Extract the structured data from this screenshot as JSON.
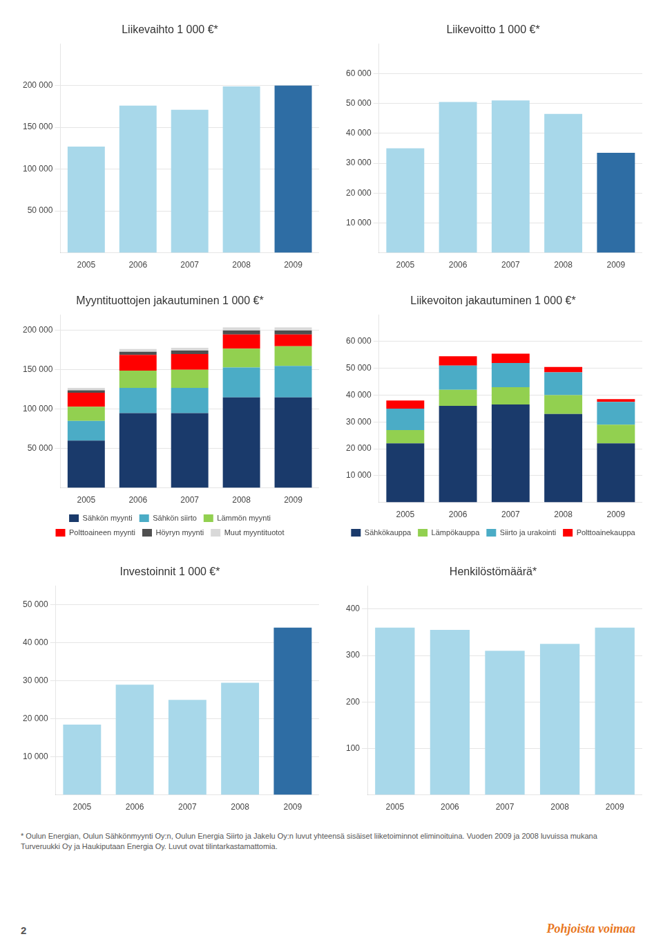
{
  "chart_data": [
    {
      "type": "bar",
      "title": "Liikevaihto 1 000 €*",
      "categories": [
        "2005",
        "2006",
        "2007",
        "2008",
        "2009"
      ],
      "values": [
        127000,
        176000,
        171000,
        199000,
        200000
      ],
      "colors": [
        "#a8d8ea",
        "#a8d8ea",
        "#a8d8ea",
        "#a8d8ea",
        "#2e6da4"
      ],
      "ylim": [
        0,
        250000
      ],
      "yticks": [
        {
          "value": 50000,
          "label": "50 000"
        },
        {
          "value": 100000,
          "label": "100 000"
        },
        {
          "value": 150000,
          "label": "150 000"
        },
        {
          "value": 200000,
          "label": "200 000"
        }
      ],
      "grid": true
    },
    {
      "type": "bar",
      "title": "Liikevoitto 1 000 €*",
      "categories": [
        "2005",
        "2006",
        "2007",
        "2008",
        "2009"
      ],
      "values": [
        35000,
        50500,
        51000,
        46500,
        33500
      ],
      "colors": [
        "#a8d8ea",
        "#a8d8ea",
        "#a8d8ea",
        "#a8d8ea",
        "#2e6da4"
      ],
      "ylim": [
        0,
        70000
      ],
      "yticks": [
        {
          "value": 10000,
          "label": "10 000"
        },
        {
          "value": 20000,
          "label": "20 000"
        },
        {
          "value": 30000,
          "label": "30 000"
        },
        {
          "value": 40000,
          "label": "40 000"
        },
        {
          "value": 50000,
          "label": "50 000"
        },
        {
          "value": 60000,
          "label": "60 000"
        }
      ],
      "grid": true
    },
    {
      "type": "bar",
      "stacked": true,
      "title": "Myyntituottojen jakautuminen 1 000 €*",
      "categories": [
        "2005",
        "2006",
        "2007",
        "2008",
        "2009"
      ],
      "series": [
        {
          "name": "Sähkön myynti",
          "color": "#1a3a6b",
          "values": [
            60000,
            95000,
            95000,
            115000,
            115000
          ]
        },
        {
          "name": "Sähkön siirto",
          "color": "#4bacc6",
          "values": [
            25000,
            32000,
            32000,
            38000,
            40000
          ]
        },
        {
          "name": "Lämmön myynti",
          "color": "#92d050",
          "values": [
            18000,
            22000,
            23000,
            24000,
            25000
          ]
        },
        {
          "name": "Polttoaineen myynti",
          "color": "#ff0000",
          "values": [
            18000,
            20000,
            20000,
            18000,
            15000
          ]
        },
        {
          "name": "Höyryn myynti",
          "color": "#4f4f4f",
          "values": [
            3000,
            4000,
            4500,
            5000,
            5000
          ]
        },
        {
          "name": "Muut myyntituotot",
          "color": "#d9d9d9",
          "values": [
            3000,
            3500,
            3500,
            4000,
            4000
          ]
        }
      ],
      "ylim": [
        0,
        220000
      ],
      "yticks": [
        {
          "value": 50000,
          "label": "50 000"
        },
        {
          "value": 100000,
          "label": "100 000"
        },
        {
          "value": 150000,
          "label": "150 000"
        },
        {
          "value": 200000,
          "label": "200 000"
        }
      ],
      "grid": true,
      "legend": "bottom"
    },
    {
      "type": "bar",
      "stacked": true,
      "title": "Liikevoiton jakautuminen 1 000 €*",
      "categories": [
        "2005",
        "2006",
        "2007",
        "2008",
        "2009"
      ],
      "series": [
        {
          "name": "Sähkökauppa",
          "color": "#1a3a6b",
          "values": [
            22000,
            36000,
            36500,
            33000,
            22000
          ]
        },
        {
          "name": "Lämpökauppa",
          "color": "#92d050",
          "values": [
            5000,
            6000,
            6500,
            7000,
            7000
          ]
        },
        {
          "name": "Siirto ja urakointi",
          "color": "#4bacc6",
          "values": [
            8000,
            9000,
            9000,
            8500,
            8500
          ]
        },
        {
          "name": "Polttoainekauppa",
          "color": "#ff0000",
          "values": [
            3000,
            3500,
            3500,
            2000,
            1000
          ]
        }
      ],
      "ylim": [
        0,
        70000
      ],
      "yticks": [
        {
          "value": 10000,
          "label": "10 000"
        },
        {
          "value": 20000,
          "label": "20 000"
        },
        {
          "value": 30000,
          "label": "30 000"
        },
        {
          "value": 40000,
          "label": "40 000"
        },
        {
          "value": 50000,
          "label": "50 000"
        },
        {
          "value": 60000,
          "label": "60 000"
        }
      ],
      "grid": true,
      "legend": "bottom"
    },
    {
      "type": "bar",
      "title": "Investoinnit 1 000 €*",
      "categories": [
        "2005",
        "2006",
        "2007",
        "2008",
        "2009"
      ],
      "values": [
        18500,
        29000,
        25000,
        29500,
        44000
      ],
      "colors": [
        "#a8d8ea",
        "#a8d8ea",
        "#a8d8ea",
        "#a8d8ea",
        "#2e6da4"
      ],
      "ylim": [
        0,
        55000
      ],
      "yticks": [
        {
          "value": 10000,
          "label": "10 000"
        },
        {
          "value": 20000,
          "label": "20 000"
        },
        {
          "value": 30000,
          "label": "30 000"
        },
        {
          "value": 40000,
          "label": "40 000"
        },
        {
          "value": 50000,
          "label": "50 000"
        }
      ],
      "grid": true
    },
    {
      "type": "bar",
      "title": "Henkilöstömäärä*",
      "categories": [
        "2005",
        "2006",
        "2007",
        "2008",
        "2009"
      ],
      "values": [
        360,
        355,
        310,
        325,
        360
      ],
      "color": "#a8d8ea",
      "ylim": [
        0,
        450
      ],
      "yticks": [
        100,
        200,
        300,
        400
      ],
      "grid": true
    }
  ],
  "footnote": "* Oulun Energian, Oulun Sähkönmyynti Oy:n, Oulun Energia Siirto ja Jakelu Oy:n luvut yhteensä sisäiset liiketoiminnot eliminoituina. Vuoden 2009 ja 2008 luvuissa mukana\nTurveruukki Oy ja Haukiputaan Energia Oy. Luvut ovat tilintarkastamattomia.",
  "page_number": "2",
  "logo_text": "Pohjoista voimaa"
}
